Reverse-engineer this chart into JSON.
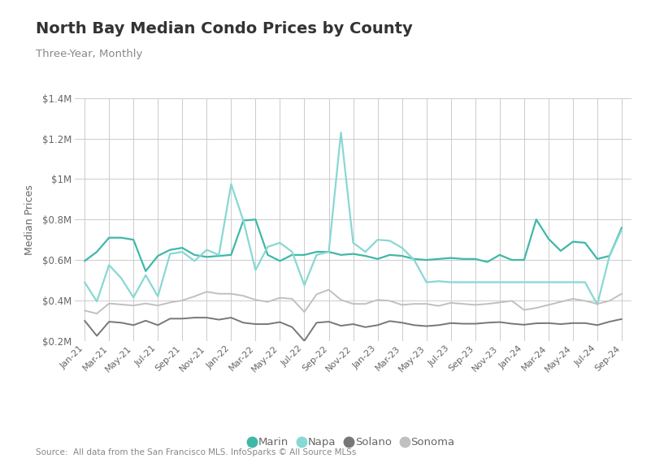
{
  "title": "North Bay Median Condo Prices by County",
  "subtitle": "Three-Year, Monthly",
  "ylabel": "Median Prices",
  "source": "Source:  All data from the San Francisco MLS. InfoSparks © All Source MLSs",
  "background_color": "#ffffff",
  "plot_bg_color": "#ffffff",
  "grid_color": "#cccccc",
  "x_labels": [
    "Jan-21",
    "Mar-21",
    "May-21",
    "Jul-21",
    "Sep-21",
    "Nov-21",
    "Jan-22",
    "Mar-22",
    "May-22",
    "Jul-22",
    "Sep-22",
    "Nov-22",
    "Jan-23",
    "Mar-23",
    "May-23",
    "Jul-23",
    "Sep-23",
    "Nov-23",
    "Jan-24",
    "Mar-24",
    "May-24",
    "Jul-24",
    "Sep-24"
  ],
  "series": {
    "Marin": {
      "color": "#40b8a8",
      "linewidth": 1.6,
      "values": [
        0.595,
        0.64,
        0.71,
        0.71,
        0.7,
        0.545,
        0.62,
        0.65,
        0.66,
        0.625,
        0.615,
        0.62,
        0.625,
        0.795,
        0.8,
        0.625,
        0.595,
        0.625,
        0.625,
        0.64,
        0.64,
        0.625,
        0.63,
        0.62,
        0.605,
        0.625,
        0.62,
        0.605,
        0.6,
        0.605,
        0.61,
        0.605,
        0.605,
        0.59,
        0.625,
        0.6,
        0.6,
        0.8,
        0.705,
        0.645,
        0.69,
        0.685,
        0.605,
        0.62,
        0.76
      ]
    },
    "Napa": {
      "color": "#88d8d4",
      "linewidth": 1.6,
      "values": [
        0.49,
        0.395,
        0.575,
        0.51,
        0.415,
        0.525,
        0.42,
        0.63,
        0.64,
        0.595,
        0.65,
        0.625,
        0.975,
        0.795,
        0.55,
        0.665,
        0.685,
        0.64,
        0.475,
        0.625,
        0.64,
        1.23,
        0.685,
        0.64,
        0.7,
        0.695,
        0.66,
        0.6,
        0.49,
        0.495,
        0.49,
        0.49,
        0.49,
        0.49,
        0.49,
        0.49,
        0.49,
        0.49,
        0.49,
        0.49,
        0.49,
        0.49,
        0.38,
        0.62,
        0.75
      ]
    },
    "Solano": {
      "color": "#777777",
      "linewidth": 1.4,
      "values": [
        0.3,
        0.225,
        0.295,
        0.29,
        0.278,
        0.3,
        0.278,
        0.31,
        0.31,
        0.315,
        0.315,
        0.305,
        0.315,
        0.29,
        0.283,
        0.283,
        0.293,
        0.268,
        0.2,
        0.29,
        0.295,
        0.275,
        0.283,
        0.268,
        0.278,
        0.298,
        0.29,
        0.278,
        0.273,
        0.278,
        0.288,
        0.285,
        0.285,
        0.29,
        0.293,
        0.285,
        0.28,
        0.287,
        0.288,
        0.283,
        0.288,
        0.288,
        0.278,
        0.295,
        0.308
      ]
    },
    "Sonoma": {
      "color": "#c0c0c0",
      "linewidth": 1.4,
      "values": [
        0.35,
        0.335,
        0.385,
        0.38,
        0.375,
        0.385,
        0.375,
        0.39,
        0.4,
        0.42,
        0.443,
        0.433,
        0.433,
        0.423,
        0.403,
        0.393,
        0.413,
        0.408,
        0.343,
        0.43,
        0.453,
        0.403,
        0.383,
        0.383,
        0.403,
        0.398,
        0.378,
        0.383,
        0.383,
        0.373,
        0.388,
        0.383,
        0.378,
        0.383,
        0.39,
        0.398,
        0.353,
        0.363,
        0.378,
        0.393,
        0.408,
        0.398,
        0.383,
        0.398,
        0.433
      ]
    }
  },
  "ylim": [
    0.2,
    1.4
  ],
  "yticks": [
    0.2,
    0.4,
    0.6,
    0.8,
    1.0,
    1.2,
    1.4
  ],
  "ytick_labels": [
    "$0.2M",
    "$0.4M",
    "$0.6M",
    "$0.8M",
    "$1M",
    "$1.2M",
    "$1.4M"
  ],
  "legend_order": [
    "Marin",
    "Napa",
    "Solano",
    "Sonoma"
  ]
}
